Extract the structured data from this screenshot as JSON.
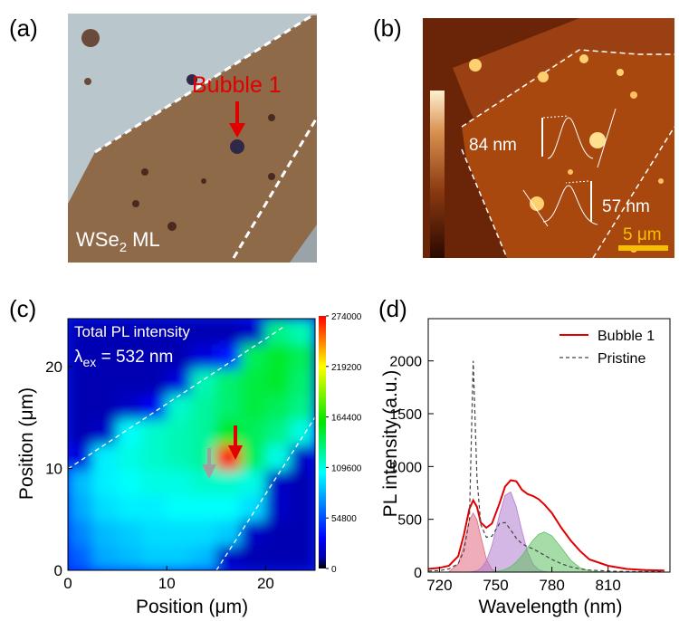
{
  "panel_a": {
    "label": "(a)",
    "annotation": "Bubble 1",
    "caption_main": "WSe",
    "caption_sub": "2",
    "caption_tail": " ML"
  },
  "panel_b": {
    "label": "(b)",
    "height_1": "84 nm",
    "height_2": "57 nm",
    "scale_bar": "5 μm"
  },
  "chart_data": [
    {
      "type": "heatmap",
      "label": "(c)",
      "xlabel": "Position (μm)",
      "ylabel": "Position (μm)",
      "annotation_1": "Total PL intensity",
      "annotation_2_symbol": "λ",
      "annotation_2_sub": "ex",
      "annotation_2_tail": " = 532 nm",
      "xlim": [
        0,
        25
      ],
      "ylim": [
        0,
        24.7
      ],
      "xticks": [
        0,
        10,
        20
      ],
      "yticks": [
        0,
        10,
        20
      ],
      "colorbar_lim": [
        0,
        274000
      ],
      "colorbar_ticks": [
        0,
        54800,
        109600,
        164400,
        219200,
        274000
      ],
      "z": [
        [
          60000,
          80000,
          85000,
          90000,
          90000,
          85000,
          20000,
          15000,
          15000,
          15000
        ],
        [
          70000,
          85000,
          90000,
          95000,
          95000,
          95000,
          90000,
          20000,
          15000,
          15000
        ],
        [
          80000,
          95000,
          100000,
          100000,
          105000,
          105000,
          105000,
          95000,
          20000,
          15000
        ],
        [
          85000,
          100000,
          105000,
          110000,
          110000,
          115000,
          115000,
          110000,
          20000,
          15000
        ],
        [
          25000,
          100000,
          110000,
          115000,
          120000,
          125000,
          274000,
          140000,
          110000,
          20000
        ],
        [
          15000,
          20000,
          105000,
          115000,
          120000,
          125000,
          150000,
          140000,
          130000,
          110000
        ],
        [
          15000,
          15000,
          20000,
          30000,
          115000,
          125000,
          135000,
          145000,
          140000,
          130000
        ],
        [
          15000,
          15000,
          15000,
          15000,
          25000,
          120000,
          135000,
          145000,
          150000,
          135000
        ],
        [
          15000,
          15000,
          15000,
          15000,
          15000,
          25000,
          40000,
          140000,
          150000,
          140000
        ],
        [
          15000,
          15000,
          15000,
          15000,
          15000,
          15000,
          15000,
          20000,
          130000,
          120000
        ]
      ]
    },
    {
      "type": "line",
      "label": "(d)",
      "xlabel": "Wavelength (nm)",
      "ylabel": "PL intensity (a.u.)",
      "xlim": [
        714,
        843
      ],
      "ylim": [
        0,
        2400
      ],
      "xticks": [
        720,
        750,
        780,
        810
      ],
      "yticks": [
        0,
        500,
        1000,
        1500,
        2000
      ],
      "legend": "upper right",
      "x": [
        714,
        720,
        725,
        730,
        733,
        736,
        738,
        740,
        742,
        745,
        748,
        752,
        755,
        758,
        761,
        764,
        767,
        770,
        773,
        776,
        780,
        785,
        790,
        795,
        800,
        810,
        820,
        830,
        840
      ],
      "series": [
        {
          "color": "#e06a80",
          "fill": true,
          "values": [
            0,
            0,
            3,
            76,
            256,
            494,
            560,
            494,
            340,
            121,
            25,
            1,
            0,
            0,
            0,
            0,
            0,
            0,
            0,
            0,
            0,
            0,
            0,
            0,
            0,
            0,
            0,
            0,
            0
          ]
        },
        {
          "color": "#b07cd0",
          "fill": true,
          "values": [
            0,
            0,
            0,
            0,
            0,
            2,
            5,
            14,
            34,
            104,
            250,
            544,
            728,
            759,
            617,
            390,
            192,
            74,
            22,
            5,
            0,
            0,
            0,
            0,
            0,
            0,
            0,
            0,
            0
          ]
        },
        {
          "color": "#5cc060",
          "fill": true,
          "values": [
            0,
            0,
            0,
            0,
            0,
            0,
            0,
            0,
            0,
            1,
            3,
            11,
            25,
            51,
            95,
            156,
            231,
            304,
            359,
            380,
            344,
            231,
            113,
            41,
            11,
            0,
            0,
            0,
            0
          ]
        },
        {
          "name": "Bubble 1",
          "color": "#e00000",
          "dash": false,
          "values": [
            30,
            40,
            60,
            150,
            350,
            600,
            680,
            620,
            470,
            420,
            460,
            650,
            810,
            870,
            860,
            780,
            740,
            720,
            690,
            640,
            560,
            420,
            300,
            200,
            120,
            60,
            30,
            20,
            15
          ]
        },
        {
          "name": "Pristine",
          "color": "#444444",
          "dash": true,
          "values": [
            10,
            15,
            30,
            80,
            200,
            500,
            2000,
            900,
            450,
            330,
            340,
            460,
            470,
            400,
            320,
            270,
            240,
            220,
            190,
            160,
            120,
            80,
            50,
            30,
            20,
            10,
            5,
            5,
            5
          ]
        }
      ]
    }
  ]
}
